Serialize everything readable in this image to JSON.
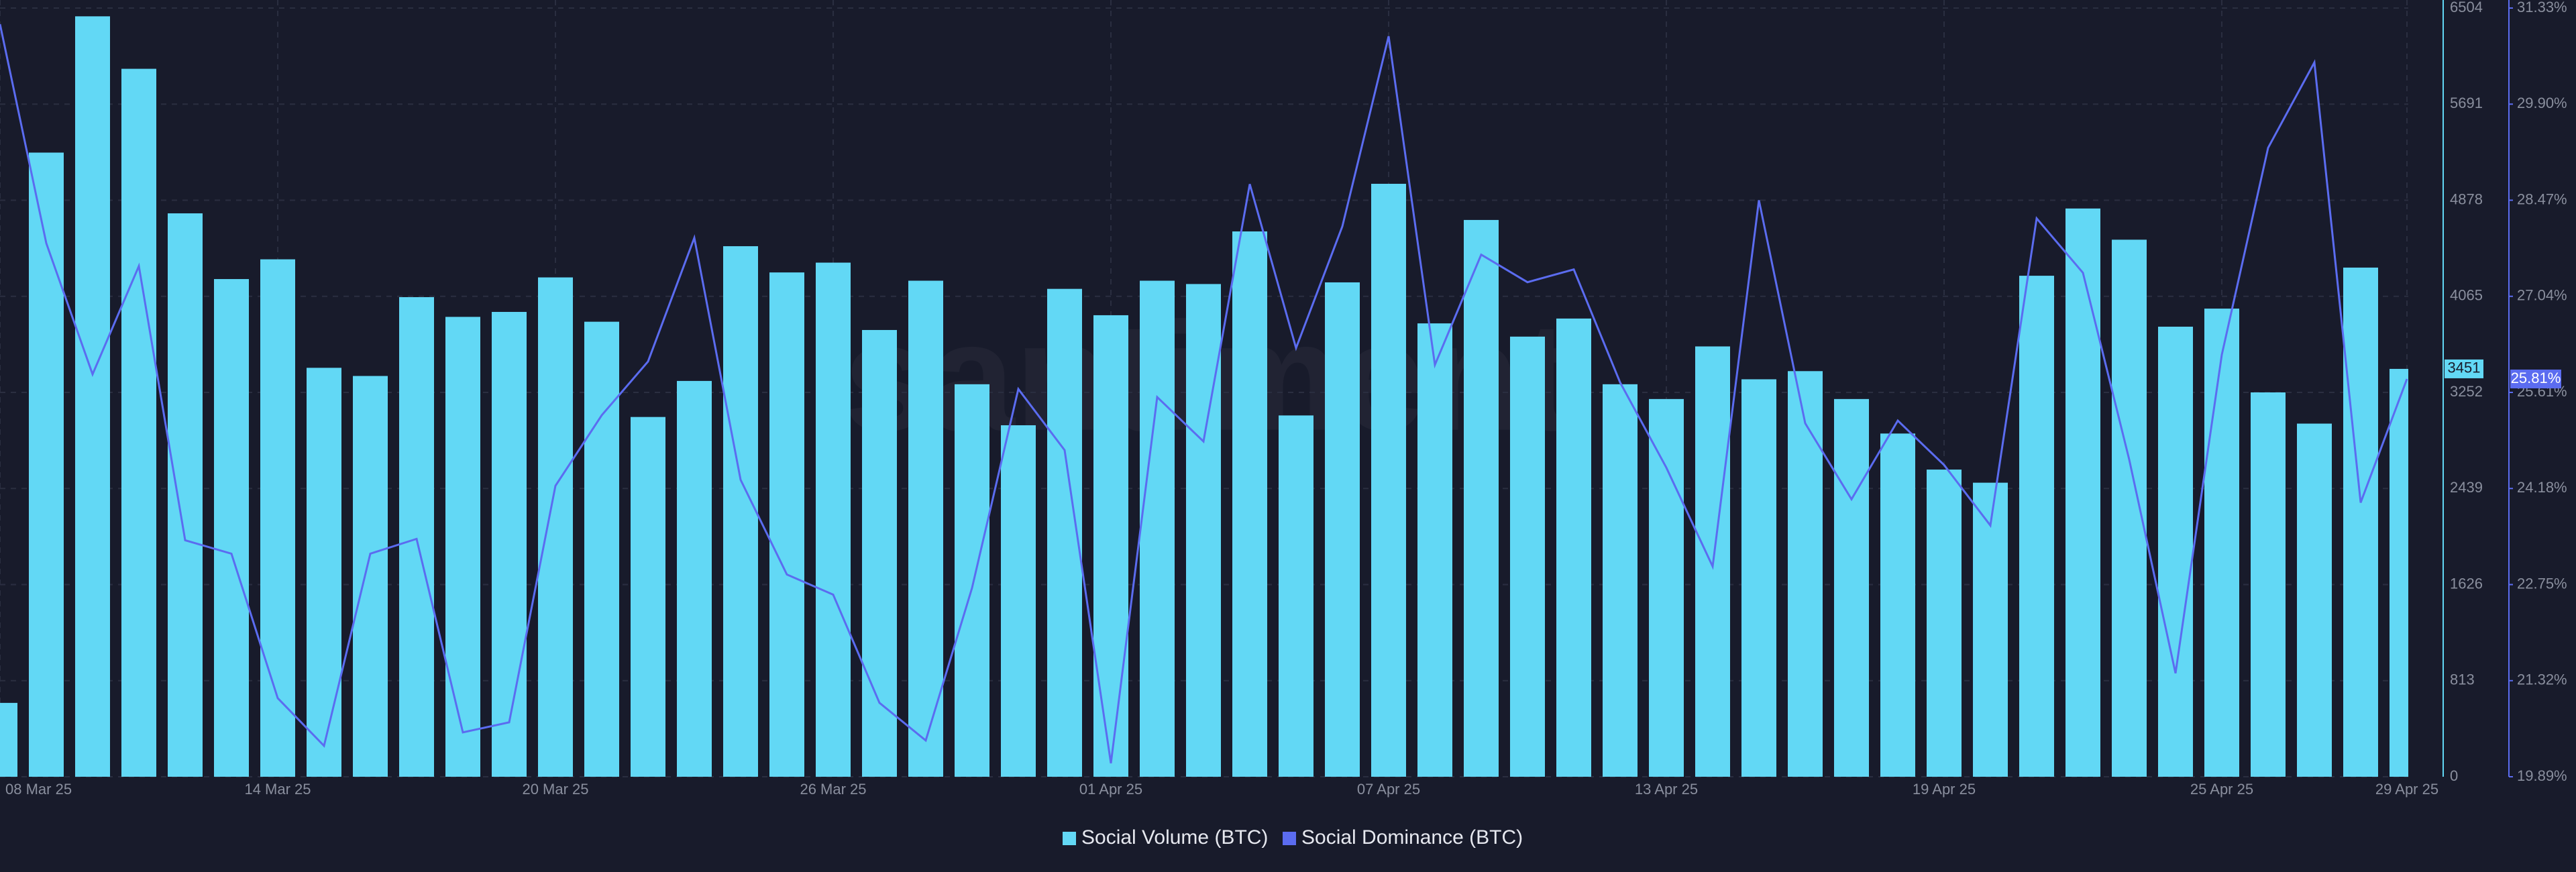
{
  "chart_data": {
    "type": "bar_line",
    "watermark": "santiment",
    "categories": [
      "08 Mar 25",
      null,
      null,
      null,
      null,
      null,
      "14 Mar 25",
      null,
      null,
      null,
      null,
      null,
      "20 Mar 25",
      null,
      null,
      null,
      null,
      null,
      "26 Mar 25",
      null,
      null,
      null,
      null,
      null,
      "01 Apr 25",
      null,
      null,
      null,
      null,
      null,
      "07 Apr 25",
      null,
      null,
      null,
      null,
      null,
      "13 Apr 25",
      null,
      null,
      null,
      null,
      null,
      "19 Apr 25",
      null,
      null,
      null,
      null,
      null,
      "25 Apr 25",
      null,
      null,
      null,
      "29 Apr 25"
    ],
    "series": [
      {
        "name": "Social Volume (BTC)",
        "color": "#62d8f5",
        "type": "bar",
        "values": [
          625,
          5281,
          6434,
          5990,
          4767,
          4211,
          4378,
          3460,
          3391,
          4058,
          3891,
          3933,
          4225,
          3850,
          3044,
          3349,
          4489,
          4267,
          4350,
          3780,
          4197,
          3321,
          2974,
          4128,
          3905,
          4197,
          4169,
          4614,
          3057,
          4183,
          5017,
          3836,
          4711,
          3724,
          3877,
          3321,
          3196,
          3641,
          3363,
          3432,
          3196,
          2904,
          2599,
          2488,
          4239,
          4808,
          4544,
          3808,
          3961,
          3252,
          2988,
          4308,
          3451
        ]
      },
      {
        "name": "Social Dominance (BTC)",
        "color": "#5b6cf0",
        "type": "line",
        "axis": "y2",
        "values": [
          31.09,
          27.83,
          25.88,
          27.49,
          23.41,
          23.21,
          21.06,
          20.35,
          23.21,
          23.43,
          20.55,
          20.7,
          24.22,
          25.27,
          26.07,
          27.91,
          24.31,
          22.9,
          22.6,
          20.99,
          20.43,
          22.7,
          25.66,
          24.75,
          20.09,
          25.54,
          24.88,
          28.71,
          26.27,
          28.08,
          30.91,
          26.02,
          27.66,
          27.25,
          27.44,
          25.76,
          24.49,
          23.02,
          28.47,
          25.15,
          24.02,
          25.19,
          24.53,
          23.63,
          28.2,
          27.39,
          24.61,
          21.43,
          26.17,
          29.25,
          30.52,
          23.97,
          25.81
        ],
        "value_labels": [
          null,
          null,
          null,
          null,
          null,
          null,
          null,
          null,
          null,
          null,
          null,
          null,
          null,
          null,
          null,
          null,
          null,
          null,
          null,
          null,
          null,
          null,
          null,
          null,
          null,
          null,
          null,
          null,
          null,
          null,
          null,
          null,
          null,
          null,
          null,
          null,
          null,
          null,
          null,
          null,
          null,
          null,
          null,
          null,
          null,
          null,
          null,
          null,
          null,
          null,
          null,
          null,
          "25.81%"
        ]
      }
    ],
    "ylim": [
      0,
      6504
    ],
    "yticks": [
      0,
      813,
      1626,
      2439,
      3252,
      4065,
      4878,
      5691,
      6504
    ],
    "y2lim": [
      19.89,
      31.33
    ],
    "y2ticks": [
      {
        "value": 19.89,
        "label": "19.89%"
      },
      {
        "value": 21.32,
        "label": "21.32%"
      },
      {
        "value": 22.75,
        "label": "22.75%"
      },
      {
        "value": 24.18,
        "label": "24.18%"
      },
      {
        "value": 25.61,
        "label": "25.61%"
      },
      {
        "value": 27.04,
        "label": "27.04%"
      },
      {
        "value": 28.47,
        "label": "28.47%"
      },
      {
        "value": 29.9,
        "label": "29.90%"
      },
      {
        "value": 31.33,
        "label": "31.33%"
      }
    ],
    "grid": true,
    "legend": "bottom"
  }
}
